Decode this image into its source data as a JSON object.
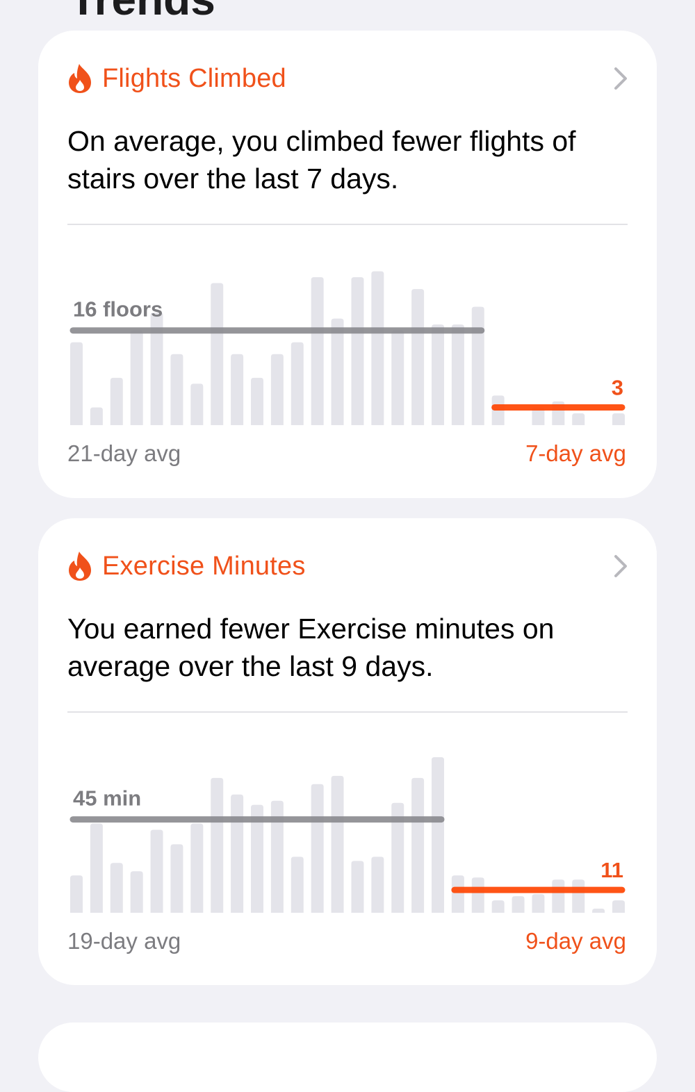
{
  "page": {
    "title": "Trends"
  },
  "colors": {
    "accent": "#f0511a",
    "bar": "#e4e4ea",
    "old_avg_line": "#8a8a8f",
    "new_avg_line": "#ff4b0a"
  },
  "cards": [
    {
      "icon": "flame-icon",
      "title": "Flights Climbed",
      "description": "On average, you climbed fewer flights of stairs over the last 7 days.",
      "old_avg_label": "21-day avg",
      "new_avg_label": "7-day avg",
      "old_avg_value": "16 floors",
      "new_avg_value": "3"
    },
    {
      "icon": "flame-icon",
      "title": "Exercise Minutes",
      "description": "You earned fewer Exercise minutes on average over the last 9 days.",
      "old_avg_label": "19-day avg",
      "new_avg_label": "9-day avg",
      "old_avg_value": "45 min",
      "new_avg_value": "11"
    }
  ],
  "chart_data": [
    {
      "type": "bar",
      "ylim": [
        0,
        27
      ],
      "grid": false,
      "old_period": {
        "values": [
          14,
          3,
          8,
          16,
          19,
          12,
          7,
          24,
          12,
          8,
          12,
          14,
          25,
          18,
          25,
          26,
          16,
          23,
          17,
          17,
          20
        ],
        "average": 16,
        "label": "16 floors"
      },
      "new_period": {
        "values": [
          5,
          0,
          3,
          4,
          2,
          0,
          2
        ],
        "average": 3,
        "label": "3"
      }
    },
    {
      "type": "bar",
      "ylim": [
        0,
        77
      ],
      "grid": false,
      "old_period": {
        "values": [
          18,
          43,
          24,
          20,
          40,
          33,
          43,
          65,
          57,
          52,
          54,
          27,
          62,
          66,
          25,
          27,
          53,
          65,
          75
        ],
        "average": 45,
        "label": "45 min"
      },
      "new_period": {
        "values": [
          18,
          17,
          6,
          8,
          9,
          16,
          16,
          2,
          6
        ],
        "average": 11,
        "label": "11"
      }
    }
  ]
}
